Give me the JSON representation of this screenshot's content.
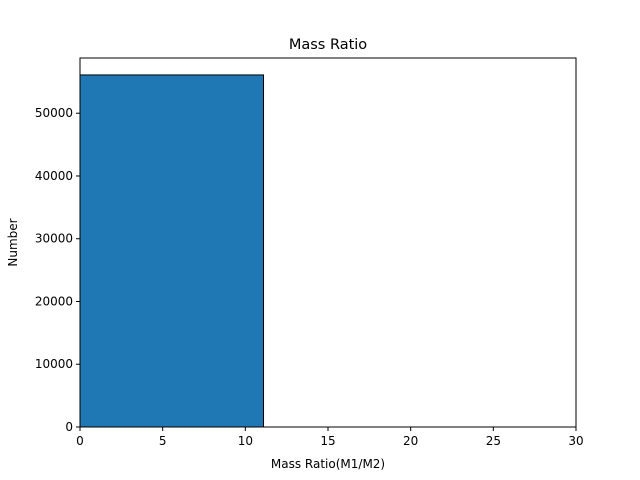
{
  "chart_data": {
    "type": "bar",
    "title": "Mass Ratio",
    "xlabel": "Mass Ratio(M1/M2)",
    "ylabel": "Number",
    "xlim": [
      0,
      30
    ],
    "ylim": [
      0,
      58800
    ],
    "xticks": [
      0,
      5,
      10,
      15,
      20,
      25,
      30
    ],
    "yticks": [
      0,
      10000,
      20000,
      30000,
      40000,
      50000
    ],
    "bins": [
      {
        "x0": 0,
        "x1": 11.1,
        "value": 56100
      }
    ],
    "bar_color": "#1f77b4",
    "edge_color": "#000000",
    "grid": false,
    "legend": null
  }
}
